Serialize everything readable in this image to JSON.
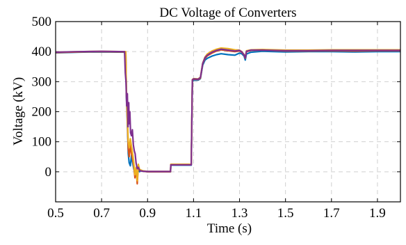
{
  "chart_data": {
    "type": "line",
    "title": "DC Voltage of Converters",
    "xlabel": "Time (s)",
    "ylabel": "Voltage (kV)",
    "xlim": [
      0.5,
      2.0
    ],
    "ylim": [
      -100,
      500
    ],
    "xticks": [
      0.5,
      0.7,
      0.9,
      1.1,
      1.3,
      1.5,
      1.7,
      1.9
    ],
    "xtick_labels": [
      "0.5",
      "0.7",
      "0.9",
      "1.1",
      "1.3",
      "1.5",
      "1.7",
      "1.9"
    ],
    "yticks": [
      0,
      100,
      200,
      300,
      400,
      500
    ],
    "ytick_labels": [
      "0",
      "100",
      "200",
      "300",
      "400",
      "500"
    ],
    "grid": true,
    "grid_style": "dashed",
    "colors": {
      "blue": "#0072BD",
      "orange": "#D95319",
      "yellow": "#EDB120",
      "purple": "#7E2F8E"
    },
    "series": [
      {
        "color": "#0072BD",
        "x": [
          0.5,
          0.6,
          0.7,
          0.805,
          0.808,
          0.812,
          0.816,
          0.82,
          0.825,
          0.83,
          0.835,
          0.84,
          0.845,
          0.85,
          0.855,
          0.86,
          0.865,
          0.87,
          0.88,
          0.9,
          1.0,
          1.001,
          1.01,
          1.09,
          1.095,
          1.1,
          1.12,
          1.13,
          1.14,
          1.15,
          1.16,
          1.18,
          1.2,
          1.22,
          1.25,
          1.28,
          1.3,
          1.31,
          1.32,
          1.325,
          1.33,
          1.35,
          1.4,
          1.5,
          1.6,
          1.7,
          1.8,
          1.9,
          2.0
        ],
        "y": [
          396,
          398,
          399,
          398,
          250,
          160,
          60,
          30,
          20,
          55,
          30,
          10,
          -5,
          5,
          -15,
          12,
          0,
          4,
          2,
          0,
          0,
          22,
          22,
          22,
          300,
          305,
          305,
          310,
          355,
          372,
          378,
          385,
          390,
          393,
          390,
          388,
          395,
          393,
          385,
          372,
          392,
          398,
          401,
          399,
          400,
          400,
          399,
          400,
          400
        ]
      },
      {
        "color": "#D95319",
        "x": [
          0.5,
          0.6,
          0.7,
          0.805,
          0.808,
          0.812,
          0.816,
          0.82,
          0.825,
          0.83,
          0.835,
          0.84,
          0.845,
          0.85,
          0.855,
          0.86,
          0.865,
          0.87,
          0.88,
          0.9,
          1.0,
          1.001,
          1.01,
          1.09,
          1.095,
          1.1,
          1.12,
          1.13,
          1.14,
          1.15,
          1.16,
          1.18,
          1.2,
          1.22,
          1.25,
          1.28,
          1.3,
          1.31,
          1.32,
          1.325,
          1.33,
          1.35,
          1.4,
          1.5,
          1.6,
          1.7,
          1.8,
          1.9,
          2.0
        ],
        "y": [
          397,
          399,
          400,
          399,
          260,
          170,
          75,
          50,
          90,
          60,
          40,
          20,
          -20,
          10,
          -40,
          20,
          5,
          6,
          2,
          0,
          0,
          24,
          24,
          24,
          305,
          308,
          307,
          312,
          360,
          378,
          386,
          395,
          402,
          406,
          403,
          400,
          402,
          398,
          388,
          378,
          400,
          404,
          405,
          402,
          402,
          403,
          402,
          403,
          403
        ]
      },
      {
        "color": "#EDB120",
        "x": [
          0.5,
          0.6,
          0.7,
          0.805,
          0.808,
          0.812,
          0.816,
          0.82,
          0.825,
          0.83,
          0.835,
          0.84,
          0.845,
          0.85,
          0.855,
          0.86,
          0.865,
          0.87,
          0.88,
          0.9,
          1.0,
          1.001,
          1.01,
          1.09,
          1.095,
          1.1,
          1.12,
          1.13,
          1.14,
          1.15,
          1.16,
          1.18,
          1.2,
          1.22,
          1.25,
          1.28,
          1.3,
          1.31,
          1.32,
          1.325,
          1.33,
          1.35,
          1.4,
          1.5,
          1.6,
          1.7,
          1.8,
          1.9,
          2.0
        ],
        "y": [
          398,
          400,
          401,
          400,
          270,
          180,
          100,
          80,
          110,
          85,
          60,
          30,
          -10,
          15,
          -30,
          25,
          8,
          6,
          3,
          1,
          1,
          25,
          25,
          25,
          307,
          310,
          309,
          315,
          362,
          382,
          392,
          402,
          408,
          412,
          410,
          406,
          405,
          400,
          390,
          380,
          403,
          406,
          407,
          405,
          405,
          406,
          406,
          406,
          406
        ]
      },
      {
        "color": "#7E2F8E",
        "x": [
          0.5,
          0.6,
          0.7,
          0.8,
          0.803,
          0.806,
          0.809,
          0.812,
          0.815,
          0.818,
          0.82,
          0.823,
          0.826,
          0.83,
          0.834,
          0.838,
          0.842,
          0.846,
          0.85,
          0.855,
          0.86,
          0.865,
          0.87,
          0.88,
          0.9,
          1.0,
          1.001,
          1.01,
          1.09,
          1.095,
          1.1,
          1.12,
          1.13,
          1.14,
          1.15,
          1.16,
          1.18,
          1.2,
          1.22,
          1.25,
          1.28,
          1.3,
          1.31,
          1.32,
          1.325,
          1.33,
          1.35,
          1.4,
          1.5,
          1.6,
          1.7,
          1.8,
          1.9,
          2.0
        ],
        "y": [
          398,
          400,
          401,
          400,
          330,
          300,
          220,
          260,
          150,
          230,
          160,
          200,
          130,
          120,
          140,
          90,
          70,
          60,
          30,
          10,
          15,
          5,
          3,
          2,
          1,
          1,
          23,
          23,
          23,
          306,
          309,
          308,
          314,
          361,
          380,
          388,
          398,
          404,
          408,
          405,
          402,
          404,
          399,
          389,
          379,
          401,
          405,
          405,
          403,
          403,
          404,
          404,
          404,
          404
        ]
      }
    ]
  }
}
